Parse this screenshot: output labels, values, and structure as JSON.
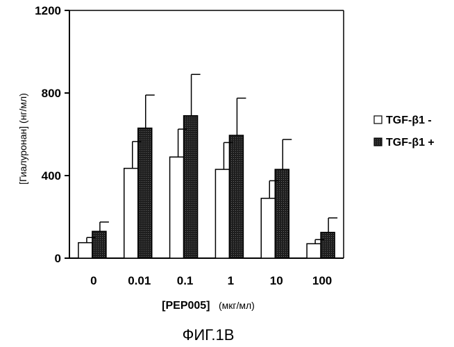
{
  "chart_data": {
    "type": "bar",
    "categories": [
      "0",
      "0.01",
      "0.1",
      "1",
      "10",
      "100"
    ],
    "series": [
      {
        "name": "TGF-β1 -",
        "values": [
          75,
          435,
          490,
          430,
          290,
          70
        ],
        "errors": [
          25,
          130,
          135,
          130,
          85,
          20
        ],
        "color": "#ffffff"
      },
      {
        "name": "TGF-β1 +",
        "values": [
          130,
          630,
          690,
          595,
          430,
          125
        ],
        "errors": [
          45,
          160,
          200,
          180,
          145,
          70
        ],
        "color": "#2a2a2a"
      }
    ],
    "ylim": [
      0,
      1200
    ],
    "yticks": [
      "0",
      "400",
      "800",
      "1200"
    ],
    "ylabel": "[Гиалуронан] (нг/мл)",
    "xlabel_bold": "[PEP005]",
    "xlabel_units": "(мкг/мл)",
    "legend_position": "right",
    "grid": false
  },
  "caption": "ФИГ.1B"
}
